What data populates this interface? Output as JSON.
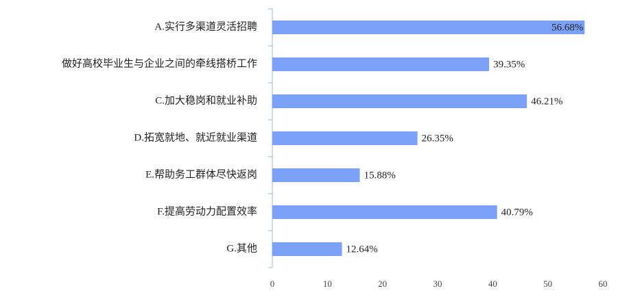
{
  "chart_data": {
    "type": "barh",
    "categories": [
      "A.实行多渠道灵活招聘",
      "做好高校毕业生与企业之间的牵线搭桥工作",
      "C.加大稳岗和就业补助",
      "D.拓宽就地、就近就业渠道",
      "E.帮助务工群体尽快返岗",
      "F.提高劳动力配置效率",
      "G.其他"
    ],
    "values": [
      56.68,
      39.35,
      46.21,
      26.35,
      15.88,
      40.79,
      12.64
    ],
    "value_labels": [
      "56.68%",
      "39.35%",
      "46.21%",
      "26.35%",
      "15.88%",
      "40.79%",
      "12.64%"
    ],
    "color": "#7aa0f7",
    "xlim": [
      0,
      60
    ],
    "xticks": [
      0,
      10,
      20,
      30,
      40,
      50,
      60
    ],
    "grid": false
  }
}
